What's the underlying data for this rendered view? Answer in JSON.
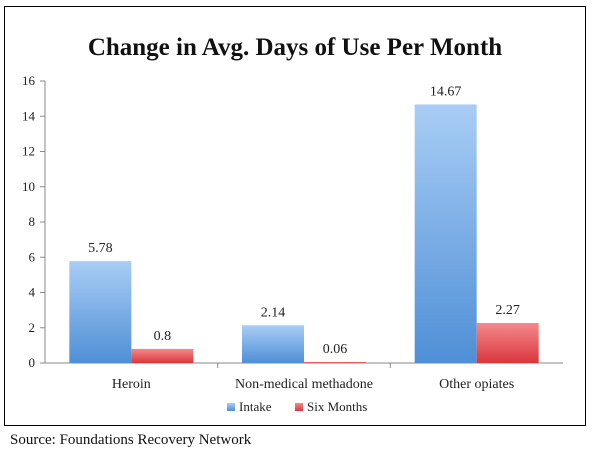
{
  "chart_data": {
    "type": "bar",
    "title": "Change in Avg. Days of Use Per Month",
    "categories": [
      "Heroin",
      "Non-medical methadone",
      "Other opiates"
    ],
    "series": [
      {
        "name": "Intake",
        "values": [
          5.78,
          2.14,
          14.67
        ],
        "labels": [
          "5.78",
          "2.14",
          "14.67"
        ],
        "color": "#5b9bd5"
      },
      {
        "name": "Six Months",
        "values": [
          0.8,
          0.06,
          2.27
        ],
        "labels": [
          "0.8",
          "0.06",
          "2.27"
        ],
        "color": "#e0474c"
      }
    ],
    "ylim": [
      0,
      16
    ],
    "yticks": [
      "0",
      "2",
      "4",
      "6",
      "8",
      "10",
      "12",
      "14",
      "16"
    ],
    "xlabel": "",
    "ylabel": "",
    "grid": false,
    "legend_position": "bottom"
  },
  "source": "Source: Foundations Recovery Network"
}
